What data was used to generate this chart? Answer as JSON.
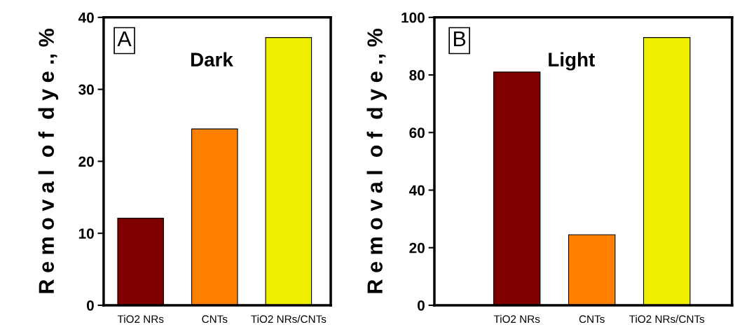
{
  "chart_data": [
    {
      "type": "bar",
      "categories": [
        "TiO2 NRs",
        "CNTs",
        "TiO2 NRs/CNTs"
      ],
      "values": [
        12.1,
        24.5,
        37.2
      ],
      "colors": [
        "#800000",
        "#ff8000",
        "#eeee00"
      ],
      "ylabel": "R e m o v a l  o f  d y e ., %",
      "ylim": [
        0,
        40
      ],
      "yticks": [
        0,
        10,
        20,
        30,
        40
      ],
      "annotations": [
        "A",
        "Dark"
      ],
      "grid": false,
      "legend": false
    },
    {
      "type": "bar",
      "categories": [
        "TiO2 NRs",
        "CNTs",
        "TiO2 NRs/CNTs"
      ],
      "values": [
        81,
        24.5,
        93
      ],
      "colors": [
        "#800000",
        "#ff8000",
        "#eeee00"
      ],
      "ylabel": "R e m o v a l  o f  d y e ., %",
      "ylim": [
        0,
        100
      ],
      "yticks": [
        0,
        20,
        40,
        60,
        80,
        100
      ],
      "annotations": [
        "B",
        "Light"
      ],
      "grid": false,
      "legend": false
    }
  ]
}
